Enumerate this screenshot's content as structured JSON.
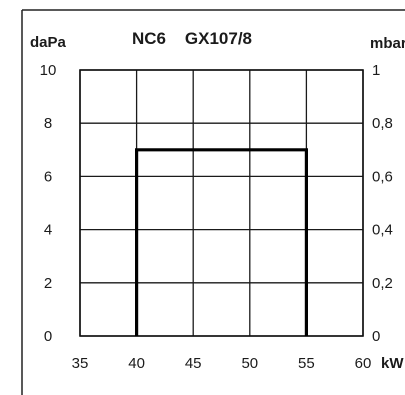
{
  "chart_data": {
    "type": "line",
    "title": "NC6    GX107/8",
    "xlabel": "kW",
    "ylabel_left": "daPa",
    "ylabel_right": "mbar",
    "xlim": [
      35,
      60
    ],
    "ylim_left": [
      0,
      10
    ],
    "ylim_right": [
      0,
      1
    ],
    "x_ticks": [
      "35",
      "40",
      "45",
      "50",
      "55",
      "60"
    ],
    "y_ticks_left": [
      "0",
      "2",
      "4",
      "6",
      "8",
      "10"
    ],
    "y_ticks_right": [
      "0",
      "0,2",
      "0,4",
      "0,6",
      "0,8",
      "1"
    ],
    "grid": true,
    "series": [
      {
        "x": [
          40,
          40,
          55,
          55
        ],
        "y": [
          0,
          7,
          7,
          0
        ]
      }
    ]
  }
}
